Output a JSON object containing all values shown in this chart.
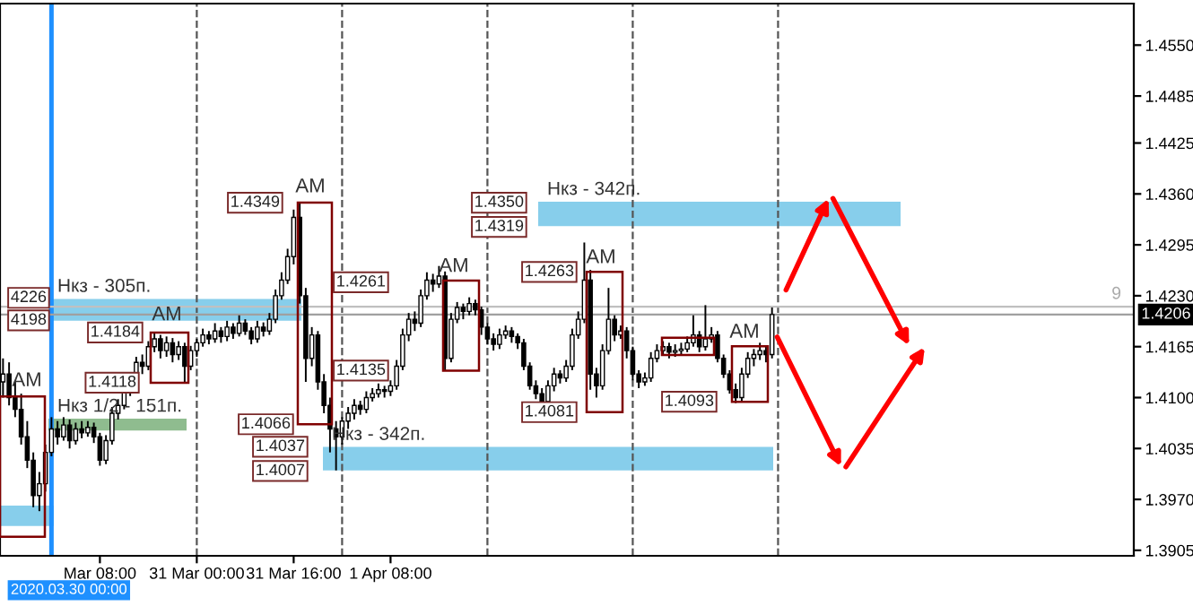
{
  "chart_data": {
    "type": "candlestick",
    "color": "#000000",
    "x": [
      "2020-03-29T16:00",
      "2020-03-29T17:00",
      "2020-03-29T18:00",
      "2020-03-29T19:00",
      "2020-03-29T20:00",
      "2020-03-29T21:00",
      "2020-03-29T22:00",
      "2020-03-29T23:00",
      "2020-03-30T00:00",
      "2020-03-30T01:00",
      "2020-03-30T02:00",
      "2020-03-30T03:00",
      "2020-03-30T04:00",
      "2020-03-30T05:00",
      "2020-03-30T06:00",
      "2020-03-30T07:00",
      "2020-03-30T08:00",
      "2020-03-30T09:00",
      "2020-03-30T10:00",
      "2020-03-30T11:00",
      "2020-03-30T12:00",
      "2020-03-30T13:00",
      "2020-03-30T14:00",
      "2020-03-30T15:00",
      "2020-03-30T16:00",
      "2020-03-30T17:00",
      "2020-03-30T18:00",
      "2020-03-30T19:00",
      "2020-03-30T20:00",
      "2020-03-30T21:00",
      "2020-03-30T22:00",
      "2020-03-30T23:00",
      "2020-03-31T00:00",
      "2020-03-31T01:00",
      "2020-03-31T02:00",
      "2020-03-31T03:00",
      "2020-03-31T04:00",
      "2020-03-31T05:00",
      "2020-03-31T06:00",
      "2020-03-31T07:00",
      "2020-03-31T08:00",
      "2020-03-31T09:00",
      "2020-03-31T10:00",
      "2020-03-31T11:00",
      "2020-03-31T12:00",
      "2020-03-31T13:00",
      "2020-03-31T14:00",
      "2020-03-31T15:00",
      "2020-03-31T16:00",
      "2020-03-31T17:00",
      "2020-03-31T18:00",
      "2020-03-31T19:00",
      "2020-03-31T20:00",
      "2020-03-31T21:00",
      "2020-03-31T22:00",
      "2020-03-31T23:00",
      "2020-04-01T00:00",
      "2020-04-01T01:00",
      "2020-04-01T02:00",
      "2020-04-01T03:00",
      "2020-04-01T04:00",
      "2020-04-01T05:00",
      "2020-04-01T06:00",
      "2020-04-01T07:00",
      "2020-04-01T08:00",
      "2020-04-01T09:00",
      "2020-04-01T10:00",
      "2020-04-01T11:00",
      "2020-04-01T12:00",
      "2020-04-01T13:00",
      "2020-04-01T14:00",
      "2020-04-01T15:00",
      "2020-04-01T16:00",
      "2020-04-01T17:00",
      "2020-04-01T18:00",
      "2020-04-01T19:00",
      "2020-04-01T20:00",
      "2020-04-01T21:00",
      "2020-04-01T22:00",
      "2020-04-01T23:00",
      "2020-04-02T00:00",
      "2020-04-02T01:00",
      "2020-04-02T02:00",
      "2020-04-02T03:00",
      "2020-04-02T04:00",
      "2020-04-02T05:00",
      "2020-04-02T06:00",
      "2020-04-02T07:00",
      "2020-04-02T08:00",
      "2020-04-02T09:00",
      "2020-04-02T10:00",
      "2020-04-02T11:00",
      "2020-04-02T12:00",
      "2020-04-02T13:00",
      "2020-04-02T14:00",
      "2020-04-02T15:00",
      "2020-04-02T16:00",
      "2020-04-02T17:00",
      "2020-04-02T18:00",
      "2020-04-02T19:00",
      "2020-04-02T20:00",
      "2020-04-02T21:00",
      "2020-04-02T22:00",
      "2020-04-02T23:00",
      "2020-04-03T00:00",
      "2020-04-03T01:00",
      "2020-04-03T02:00",
      "2020-04-03T03:00",
      "2020-04-03T04:00",
      "2020-04-03T05:00",
      "2020-04-03T06:00",
      "2020-04-03T07:00",
      "2020-04-03T08:00",
      "2020-04-03T09:00",
      "2020-04-03T10:00",
      "2020-04-03T11:00",
      "2020-04-03T12:00",
      "2020-04-03T13:00",
      "2020-04-03T14:00",
      "2020-04-03T15:00",
      "2020-04-03T16:00",
      "2020-04-03T17:00",
      "2020-04-03T18:00",
      "2020-04-03T19:00",
      "2020-04-03T20:00",
      "2020-04-03T21:00",
      "2020-04-03T22:00",
      "2020-04-03T23:00"
    ],
    "ohlc": [
      [
        1.412,
        1.415,
        1.41,
        1.413
      ],
      [
        1.413,
        1.4145,
        1.409,
        1.41
      ],
      [
        1.41,
        1.412,
        1.4075,
        1.4085
      ],
      [
        1.4085,
        1.4105,
        1.404,
        1.405
      ],
      [
        1.405,
        1.407,
        1.401,
        1.402
      ],
      [
        1.402,
        1.403,
        1.396,
        1.3975
      ],
      [
        1.3975,
        1.4005,
        1.3955,
        1.399
      ],
      [
        1.399,
        1.404,
        1.398,
        1.403
      ],
      [
        1.403,
        1.4075,
        1.4025,
        1.406
      ],
      [
        1.406,
        1.407,
        1.404,
        1.405
      ],
      [
        1.405,
        1.4075,
        1.4045,
        1.4065
      ],
      [
        1.4065,
        1.4072,
        1.4035,
        1.4045
      ],
      [
        1.4045,
        1.4068,
        1.404,
        1.406
      ],
      [
        1.406,
        1.407,
        1.4048,
        1.4055
      ],
      [
        1.4055,
        1.407,
        1.405,
        1.4062
      ],
      [
        1.4062,
        1.4068,
        1.4042,
        1.405
      ],
      [
        1.405,
        1.4055,
        1.4013,
        1.402
      ],
      [
        1.402,
        1.4052,
        1.4015,
        1.4045
      ],
      [
        1.4045,
        1.4088,
        1.404,
        1.408
      ],
      [
        1.408,
        1.4098,
        1.4072,
        1.409
      ],
      [
        1.409,
        1.4118,
        1.4085,
        1.411
      ],
      [
        1.411,
        1.4128,
        1.4102,
        1.412
      ],
      [
        1.412,
        1.4152,
        1.4115,
        1.4145
      ],
      [
        1.4145,
        1.4155,
        1.413,
        1.414
      ],
      [
        1.414,
        1.4172,
        1.4135,
        1.4165
      ],
      [
        1.4165,
        1.4184,
        1.4158,
        1.4175
      ],
      [
        1.4175,
        1.418,
        1.415,
        1.416
      ],
      [
        1.416,
        1.4178,
        1.4152,
        1.417
      ],
      [
        1.417,
        1.4176,
        1.4145,
        1.4155
      ],
      [
        1.4155,
        1.4172,
        1.4148,
        1.4165
      ],
      [
        1.4165,
        1.417,
        1.4118,
        1.414
      ],
      [
        1.414,
        1.4166,
        1.4135,
        1.416
      ],
      [
        1.416,
        1.4175,
        1.4152,
        1.417
      ],
      [
        1.417,
        1.4188,
        1.4165,
        1.418
      ],
      [
        1.418,
        1.4185,
        1.4168,
        1.4175
      ],
      [
        1.4175,
        1.4195,
        1.417,
        1.4185
      ],
      [
        1.4185,
        1.419,
        1.417,
        1.4178
      ],
      [
        1.4178,
        1.4198,
        1.4172,
        1.419
      ],
      [
        1.419,
        1.4195,
        1.4175,
        1.4182
      ],
      [
        1.4182,
        1.4205,
        1.4178,
        1.4195
      ],
      [
        1.4195,
        1.42,
        1.418,
        1.4185
      ],
      [
        1.4185,
        1.419,
        1.4168,
        1.4175
      ],
      [
        1.4175,
        1.4198,
        1.417,
        1.419
      ],
      [
        1.419,
        1.4196,
        1.4178,
        1.4185
      ],
      [
        1.4185,
        1.4208,
        1.418,
        1.42
      ],
      [
        1.42,
        1.4238,
        1.4195,
        1.423
      ],
      [
        1.423,
        1.426,
        1.4225,
        1.425
      ],
      [
        1.425,
        1.429,
        1.4245,
        1.428
      ],
      [
        1.428,
        1.434,
        1.427,
        1.433
      ],
      [
        1.433,
        1.4349,
        1.422,
        1.423
      ],
      [
        1.423,
        1.424,
        1.412,
        1.415
      ],
      [
        1.415,
        1.419,
        1.414,
        1.418
      ],
      [
        1.418,
        1.4185,
        1.411,
        1.412
      ],
      [
        1.412,
        1.413,
        1.408,
        1.409
      ],
      [
        1.409,
        1.41,
        1.403,
        1.406
      ],
      [
        1.406,
        1.407,
        1.4007,
        1.405
      ],
      [
        1.405,
        1.4075,
        1.404,
        1.407
      ],
      [
        1.407,
        1.4088,
        1.406,
        1.408
      ],
      [
        1.408,
        1.4098,
        1.4072,
        1.409
      ],
      [
        1.409,
        1.4096,
        1.4078,
        1.4085
      ],
      [
        1.4085,
        1.4108,
        1.408,
        1.41
      ],
      [
        1.41,
        1.4112,
        1.4095,
        1.4105
      ],
      [
        1.4105,
        1.4118,
        1.41,
        1.411
      ],
      [
        1.411,
        1.4115,
        1.41,
        1.4108
      ],
      [
        1.4108,
        1.4122,
        1.4102,
        1.4115
      ],
      [
        1.4115,
        1.4148,
        1.411,
        1.414
      ],
      [
        1.414,
        1.4188,
        1.4135,
        1.418
      ],
      [
        1.418,
        1.4208,
        1.4172,
        1.42
      ],
      [
        1.42,
        1.421,
        1.4185,
        1.4195
      ],
      [
        1.4195,
        1.4238,
        1.419,
        1.423
      ],
      [
        1.423,
        1.426,
        1.4225,
        1.425
      ],
      [
        1.425,
        1.4258,
        1.4235,
        1.4245
      ],
      [
        1.4245,
        1.4268,
        1.424,
        1.4255
      ],
      [
        1.4255,
        1.4261,
        1.4135,
        1.415
      ],
      [
        1.415,
        1.4208,
        1.4145,
        1.42
      ],
      [
        1.42,
        1.4222,
        1.4195,
        1.4215
      ],
      [
        1.4215,
        1.422,
        1.42,
        1.421
      ],
      [
        1.421,
        1.4228,
        1.4205,
        1.422
      ],
      [
        1.422,
        1.4225,
        1.4205,
        1.4212
      ],
      [
        1.4212,
        1.4216,
        1.418,
        1.419
      ],
      [
        1.419,
        1.4195,
        1.4168,
        1.4175
      ],
      [
        1.4175,
        1.4182,
        1.416,
        1.4168
      ],
      [
        1.4168,
        1.4188,
        1.4162,
        1.418
      ],
      [
        1.418,
        1.4192,
        1.4175,
        1.4185
      ],
      [
        1.4185,
        1.419,
        1.417,
        1.4178
      ],
      [
        1.4178,
        1.4182,
        1.4162,
        1.417
      ],
      [
        1.417,
        1.4175,
        1.4135,
        1.414
      ],
      [
        1.414,
        1.4145,
        1.411,
        1.4115
      ],
      [
        1.4115,
        1.4122,
        1.4098,
        1.4105
      ],
      [
        1.4105,
        1.4112,
        1.4081,
        1.4095
      ],
      [
        1.4095,
        1.4122,
        1.409,
        1.4115
      ],
      [
        1.4115,
        1.4138,
        1.4108,
        1.413
      ],
      [
        1.413,
        1.4135,
        1.4118,
        1.4125
      ],
      [
        1.4125,
        1.4148,
        1.412,
        1.414
      ],
      [
        1.414,
        1.4188,
        1.4135,
        1.418
      ],
      [
        1.418,
        1.421,
        1.4175,
        1.42
      ],
      [
        1.42,
        1.4298,
        1.4195,
        1.425
      ],
      [
        1.425,
        1.4263,
        1.411,
        1.413
      ],
      [
        1.413,
        1.4138,
        1.41,
        1.4115
      ],
      [
        1.4115,
        1.4168,
        1.411,
        1.416
      ],
      [
        1.416,
        1.424,
        1.4155,
        1.42
      ],
      [
        1.42,
        1.4205,
        1.4172,
        1.418
      ],
      [
        1.418,
        1.4192,
        1.4175,
        1.4185
      ],
      [
        1.4185,
        1.419,
        1.415,
        1.416
      ],
      [
        1.416,
        1.4165,
        1.4122,
        1.413
      ],
      [
        1.413,
        1.4135,
        1.4112,
        1.412
      ],
      [
        1.412,
        1.4132,
        1.4115,
        1.4125
      ],
      [
        1.4125,
        1.4158,
        1.412,
        1.415
      ],
      [
        1.415,
        1.4168,
        1.4145,
        1.416
      ],
      [
        1.416,
        1.4172,
        1.4155,
        1.4165
      ],
      [
        1.4165,
        1.417,
        1.415,
        1.4158
      ],
      [
        1.4158,
        1.4168,
        1.4152,
        1.416
      ],
      [
        1.416,
        1.417,
        1.4155,
        1.4162
      ],
      [
        1.4162,
        1.4178,
        1.4158,
        1.417
      ],
      [
        1.417,
        1.4205,
        1.4165,
        1.418
      ],
      [
        1.418,
        1.4185,
        1.4158,
        1.4165
      ],
      [
        1.4165,
        1.4218,
        1.416,
        1.4175
      ],
      [
        1.4175,
        1.419,
        1.417,
        1.418
      ],
      [
        1.418,
        1.4185,
        1.4145,
        1.415
      ],
      [
        1.415,
        1.4155,
        1.4125,
        1.413
      ],
      [
        1.413,
        1.4135,
        1.4105,
        1.411
      ],
      [
        1.411,
        1.4118,
        1.4093,
        1.41
      ],
      [
        1.41,
        1.4138,
        1.4095,
        1.413
      ],
      [
        1.413,
        1.4158,
        1.4125,
        1.415
      ],
      [
        1.415,
        1.4162,
        1.414,
        1.4155
      ],
      [
        1.4155,
        1.417,
        1.4148,
        1.416
      ],
      [
        1.416,
        1.4165,
        1.4145,
        1.4155
      ],
      [
        1.4155,
        1.4215,
        1.415,
        1.4206
      ]
    ],
    "xlim": [
      "2020-03-29T15:30",
      "2020-04-06T10:45"
    ],
    "xticks": [
      {
        "value": "2020-03-30T08:00",
        "label": "Mar 08:00"
      },
      {
        "value": "2020-03-31T00:00",
        "label": "31 Mar 00:00"
      },
      {
        "value": "2020-03-31T16:00",
        "label": "31 Mar 16:00"
      },
      {
        "value": "2020-04-01T08:00",
        "label": "1 Apr 08:00"
      }
    ],
    "ylim": [
      1.3898,
      1.4603
    ],
    "yticks": [
      {
        "value": 1.455,
        "label": "1.4550"
      },
      1.4485,
      1.4425,
      {
        "value": 1.436,
        "label": "1.4360"
      },
      1.4295,
      {
        "value": 1.423,
        "label": "1.4230"
      },
      1.4165,
      {
        "value": 1.41,
        "label": "1.4100"
      },
      1.4035,
      {
        "value": 1.397,
        "label": "1.3970"
      },
      1.3905
    ],
    "ref_lines": [
      {
        "axis": "x",
        "value": "2020-03-30T00:00",
        "label": "2020.03.30 00:00",
        "color": "#1e90ff",
        "line_style": "solid"
      },
      {
        "axis": "x",
        "value": "2020-03-31T00:00",
        "color": "#555555",
        "line_style": "dashed"
      },
      {
        "axis": "x",
        "value": "2020-04-01T00:00",
        "color": "#555555",
        "line_style": "dashed"
      },
      {
        "axis": "x",
        "value": "2020-04-02T00:00",
        "color": "#555555",
        "line_style": "dashed"
      },
      {
        "axis": "x",
        "value": "2020-04-03T00:00",
        "color": "#555555",
        "line_style": "dashed"
      },
      {
        "axis": "x",
        "value": "2020-04-04T00:00",
        "color": "#555555",
        "line_style": "dashed"
      },
      {
        "axis": "y",
        "value": 1.4216,
        "color": "#c0c0c0",
        "line_style": "solid"
      },
      {
        "axis": "y",
        "value": 1.4206,
        "label": "1.4206",
        "color": "#a0a0a0",
        "line_style": "solid"
      }
    ],
    "bands": [
      {
        "axis": "y",
        "from": 1.4198,
        "to": 1.4226,
        "label": "Нкз - 305п.",
        "color": "#87ceeb"
      },
      {
        "axis": "y",
        "from": 1.4058,
        "to": 1.4073,
        "label": "Нкз 1/2 - 151п.",
        "color": "#8fbc8f"
      },
      {
        "axis": "y",
        "from": 1.4007,
        "to": 1.4037,
        "label": "Нкз - 342п.",
        "color": "#87ceeb"
      },
      {
        "axis": "y",
        "from": 1.4319,
        "to": 1.435,
        "label": "Нкз - 342п.",
        "color": "#87ceeb"
      },
      {
        "axis": "y",
        "from": 1.3936,
        "to": 1.3962,
        "color": "#87ceeb"
      }
    ],
    "annotations": [
      "4226",
      "4198",
      "1.4184",
      "1.4118",
      "1.4349",
      "1.4066",
      "1.4037",
      "1.4007",
      "1.4261",
      "1.4135",
      "1.4350",
      "1.4319",
      "1.4263",
      "1.4081",
      "1.4093",
      "AM",
      "AM",
      "AM",
      "AM",
      "AM",
      "AM",
      "9"
    ]
  }
}
